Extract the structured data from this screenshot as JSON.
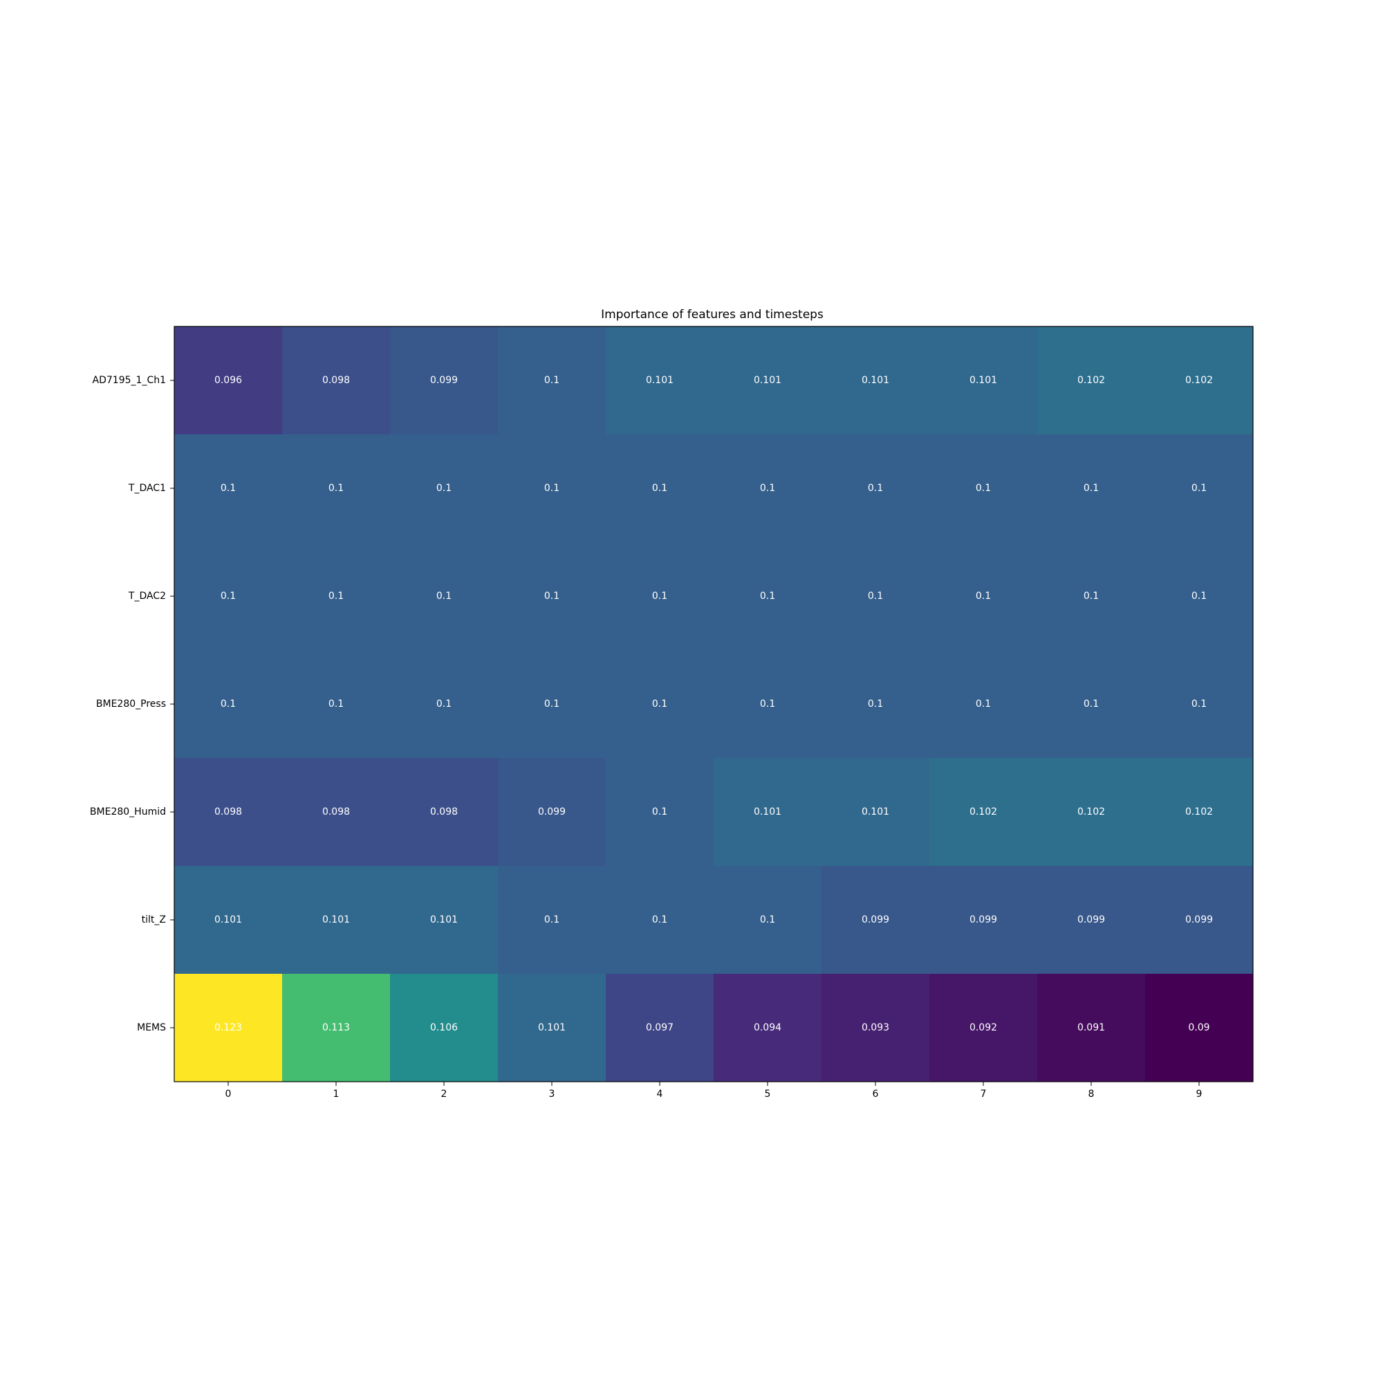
{
  "chart_data": {
    "type": "heatmap",
    "title": "Importance of features and timesteps",
    "xlabel": "",
    "ylabel": "",
    "x": [
      "0",
      "1",
      "2",
      "3",
      "4",
      "5",
      "6",
      "7",
      "8",
      "9"
    ],
    "y": [
      "AD7195_1_Ch1",
      "T_DAC1",
      "T_DAC2",
      "BME280_Press",
      "BME280_Humid",
      "tilt_Z",
      "MEMS"
    ],
    "values": [
      [
        0.096,
        0.098,
        0.099,
        0.1,
        0.101,
        0.101,
        0.101,
        0.101,
        0.102,
        0.102
      ],
      [
        0.1,
        0.1,
        0.1,
        0.1,
        0.1,
        0.1,
        0.1,
        0.1,
        0.1,
        0.1
      ],
      [
        0.1,
        0.1,
        0.1,
        0.1,
        0.1,
        0.1,
        0.1,
        0.1,
        0.1,
        0.1
      ],
      [
        0.1,
        0.1,
        0.1,
        0.1,
        0.1,
        0.1,
        0.1,
        0.1,
        0.1,
        0.1
      ],
      [
        0.098,
        0.098,
        0.098,
        0.099,
        0.1,
        0.101,
        0.101,
        0.102,
        0.102,
        0.102
      ],
      [
        0.101,
        0.101,
        0.101,
        0.1,
        0.1,
        0.1,
        0.099,
        0.099,
        0.099,
        0.099
      ],
      [
        0.123,
        0.113,
        0.106,
        0.101,
        0.097,
        0.094,
        0.093,
        0.092,
        0.091,
        0.09
      ]
    ],
    "colormap": "viridis",
    "vmin": 0.09,
    "vmax": 0.123,
    "colorbar": false,
    "cell_text_color": "#ffffff"
  }
}
